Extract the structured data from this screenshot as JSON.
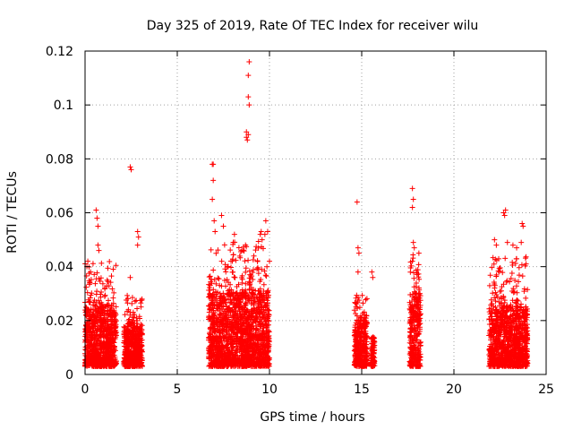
{
  "chart_data": {
    "type": "scatter",
    "title": "Day 325 of 2019, Rate Of TEC Index for receiver wilu",
    "xlabel": "GPS time / hours",
    "ylabel": "ROTI / TECUs",
    "xlim": [
      0,
      25
    ],
    "ylim": [
      0,
      0.12
    ],
    "xticks": [
      0,
      5,
      10,
      15,
      20,
      25
    ],
    "xtick_labels": [
      "0",
      "5",
      "10",
      "15",
      "20",
      "25"
    ],
    "yticks": [
      0,
      0.02,
      0.04,
      0.06,
      0.08,
      0.1,
      0.12
    ],
    "ytick_labels": [
      "0",
      "0.02",
      "0.04",
      "0.06",
      "0.08",
      "0.1",
      "0.12"
    ],
    "grid": true,
    "marker": "+",
    "color": "#ff0000",
    "clusters": [
      {
        "x_range": [
          0.0,
          1.7
        ],
        "y_core": [
          0.003,
          0.025
        ],
        "y_max": 0.042
      },
      {
        "x_range": [
          2.1,
          3.1
        ],
        "y_core": [
          0.003,
          0.018
        ],
        "y_max": 0.03
      },
      {
        "x_range": [
          6.7,
          10.0
        ],
        "y_core": [
          0.003,
          0.03
        ],
        "y_max": 0.05
      },
      {
        "x_range": [
          14.6,
          15.3
        ],
        "y_core": [
          0.003,
          0.02
        ],
        "y_max": 0.03
      },
      {
        "x_range": [
          15.5,
          15.7
        ],
        "y_core": [
          0.003,
          0.013
        ],
        "y_max": 0.014
      },
      {
        "x_range": [
          17.6,
          18.2
        ],
        "y_core": [
          0.003,
          0.03
        ],
        "y_max": 0.045
      },
      {
        "x_range": [
          21.9,
          24.0
        ],
        "y_core": [
          0.003,
          0.025
        ],
        "y_max": 0.045
      }
    ],
    "outliers": [
      {
        "x": 0.1,
        "y": 0.04
      },
      {
        "x": 0.15,
        "y": 0.042
      },
      {
        "x": 0.3,
        "y": 0.038
      },
      {
        "x": 0.6,
        "y": 0.061
      },
      {
        "x": 0.65,
        "y": 0.058
      },
      {
        "x": 0.7,
        "y": 0.055
      },
      {
        "x": 0.7,
        "y": 0.048
      },
      {
        "x": 0.75,
        "y": 0.046
      },
      {
        "x": 1.2,
        "y": 0.035
      },
      {
        "x": 2.45,
        "y": 0.077
      },
      {
        "x": 2.5,
        "y": 0.076
      },
      {
        "x": 2.45,
        "y": 0.036
      },
      {
        "x": 2.85,
        "y": 0.053
      },
      {
        "x": 2.9,
        "y": 0.051
      },
      {
        "x": 2.85,
        "y": 0.048
      },
      {
        "x": 6.9,
        "y": 0.078
      },
      {
        "x": 6.95,
        "y": 0.078
      },
      {
        "x": 6.95,
        "y": 0.072
      },
      {
        "x": 6.9,
        "y": 0.065
      },
      {
        "x": 7.0,
        "y": 0.057
      },
      {
        "x": 7.05,
        "y": 0.053
      },
      {
        "x": 7.4,
        "y": 0.059
      },
      {
        "x": 7.5,
        "y": 0.055
      },
      {
        "x": 8.1,
        "y": 0.052
      },
      {
        "x": 8.5,
        "y": 0.046
      },
      {
        "x": 8.7,
        "y": 0.048
      },
      {
        "x": 8.75,
        "y": 0.088
      },
      {
        "x": 8.8,
        "y": 0.087
      },
      {
        "x": 8.85,
        "y": 0.089
      },
      {
        "x": 8.75,
        "y": 0.09
      },
      {
        "x": 8.85,
        "y": 0.103
      },
      {
        "x": 8.9,
        "y": 0.1
      },
      {
        "x": 8.85,
        "y": 0.111
      },
      {
        "x": 8.9,
        "y": 0.116
      },
      {
        "x": 9.5,
        "y": 0.052
      },
      {
        "x": 9.55,
        "y": 0.053
      },
      {
        "x": 9.6,
        "y": 0.05
      },
      {
        "x": 9.8,
        "y": 0.057
      },
      {
        "x": 9.75,
        "y": 0.052
      },
      {
        "x": 9.9,
        "y": 0.053
      },
      {
        "x": 14.75,
        "y": 0.064
      },
      {
        "x": 14.8,
        "y": 0.047
      },
      {
        "x": 14.85,
        "y": 0.045
      },
      {
        "x": 14.8,
        "y": 0.038
      },
      {
        "x": 15.55,
        "y": 0.038
      },
      {
        "x": 15.6,
        "y": 0.036
      },
      {
        "x": 17.75,
        "y": 0.069
      },
      {
        "x": 17.8,
        "y": 0.065
      },
      {
        "x": 17.75,
        "y": 0.062
      },
      {
        "x": 17.8,
        "y": 0.049
      },
      {
        "x": 17.85,
        "y": 0.047
      },
      {
        "x": 18.1,
        "y": 0.045
      },
      {
        "x": 22.2,
        "y": 0.05
      },
      {
        "x": 22.3,
        "y": 0.048
      },
      {
        "x": 22.7,
        "y": 0.06
      },
      {
        "x": 22.8,
        "y": 0.061
      },
      {
        "x": 22.75,
        "y": 0.059
      },
      {
        "x": 22.9,
        "y": 0.049
      },
      {
        "x": 23.2,
        "y": 0.048
      },
      {
        "x": 23.4,
        "y": 0.047
      },
      {
        "x": 23.7,
        "y": 0.056
      },
      {
        "x": 23.75,
        "y": 0.055
      },
      {
        "x": 23.65,
        "y": 0.049
      }
    ]
  }
}
